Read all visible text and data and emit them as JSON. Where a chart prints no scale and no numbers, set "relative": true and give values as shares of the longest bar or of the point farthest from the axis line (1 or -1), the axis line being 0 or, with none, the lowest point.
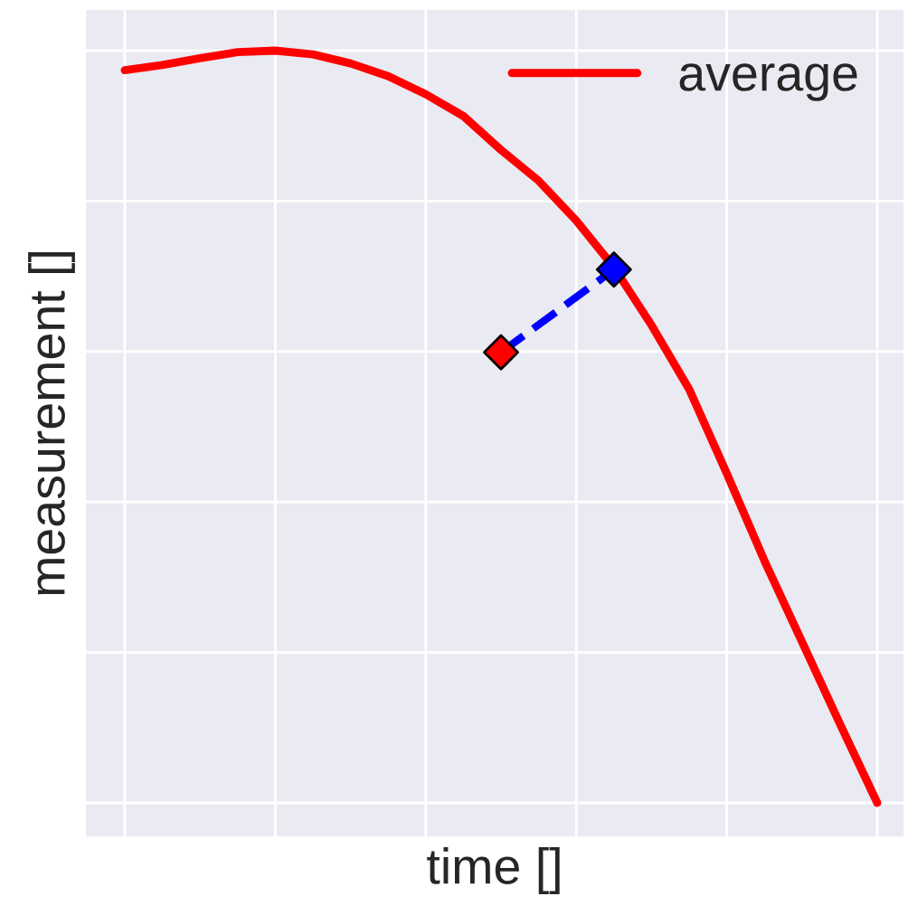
{
  "chart_data": {
    "type": "line",
    "relative": true,
    "xlabel": "time []",
    "ylabel": "measurement []",
    "tick_labels": false,
    "grid": true,
    "legend": "top right",
    "categories": [
      null,
      null,
      null,
      null,
      null,
      null,
      null,
      null,
      null,
      null,
      null,
      null,
      null,
      null,
      null,
      null,
      null,
      null,
      null,
      null,
      null
    ],
    "series": [
      {
        "name": "average",
        "color": "#ff0000",
        "line_style": "solid",
        "marker": "none",
        "values": [
          0.974,
          0.981,
          0.99,
          0.998,
          1.0,
          0.995,
          0.983,
          0.966,
          0.942,
          0.913,
          0.868,
          0.827,
          0.774,
          0.712,
          0.635,
          0.55,
          0.438,
          0.322,
          0.214,
          0.106,
          0.0
        ]
      },
      {
        "color": "#0000ff",
        "line_style": "dashed",
        "marker": "diamond",
        "colors": [
          null,
          null,
          null,
          null,
          null,
          null,
          null,
          null,
          null,
          null,
          "#ff0000",
          null,
          null,
          "#0000ff",
          null,
          null,
          null,
          null,
          null,
          null,
          null
        ],
        "values": [
          null,
          null,
          null,
          null,
          null,
          null,
          null,
          null,
          null,
          null,
          0.599,
          null,
          null,
          0.709,
          null,
          null,
          null,
          null,
          null,
          null,
          null
        ]
      }
    ]
  }
}
